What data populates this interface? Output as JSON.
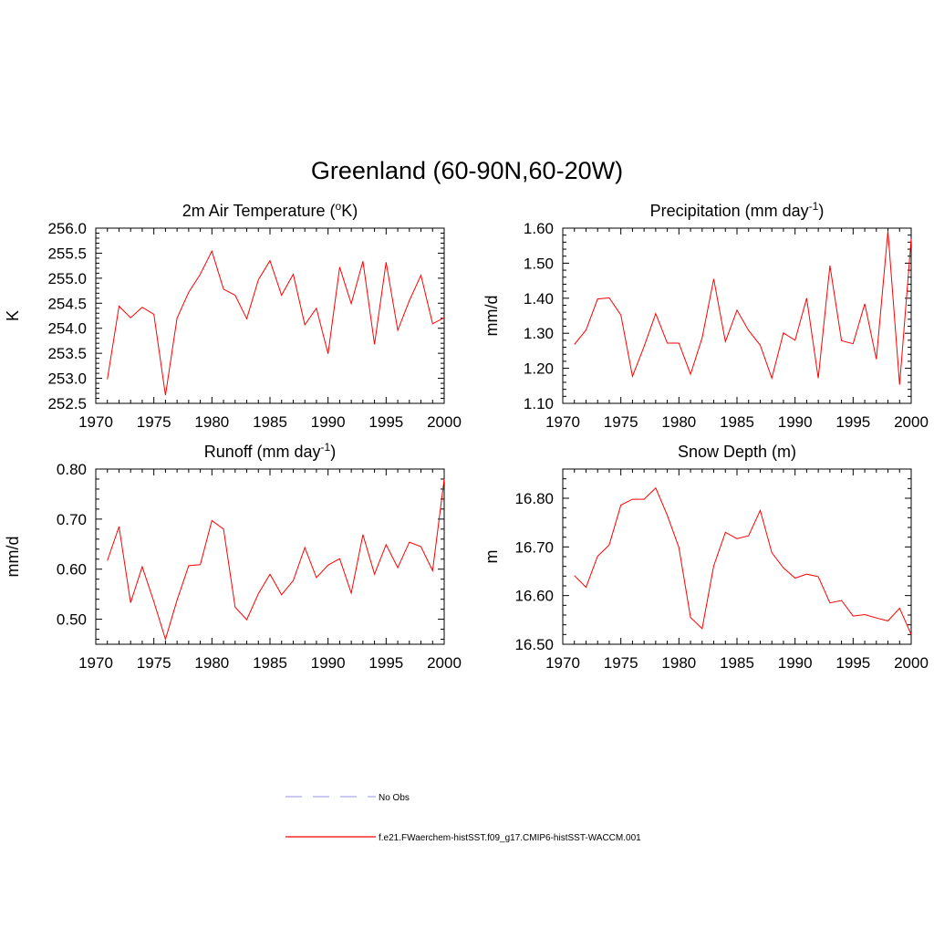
{
  "figure": {
    "title": "Greenland (60-90N,60-20W)"
  },
  "colors": {
    "model_line": "#ff0000",
    "obs_line": "#aaaaee",
    "axis": "#000000"
  },
  "legend": {
    "placement": "bottom-center",
    "entries": [
      {
        "label": "No Obs",
        "style": "dashed",
        "color": "#aaaaee"
      },
      {
        "label": "f.e21.FWaerchem-histSST.f09_g17.CMIP6-histSST-WACCM.001",
        "style": "solid",
        "color": "#ff0000"
      }
    ]
  },
  "chart_data": [
    {
      "type": "line",
      "title": "2m Air Temperature (",
      "title_sup": "o",
      "title_end": "K)",
      "ylabel": "K",
      "xlabel": "",
      "xlim": [
        1970,
        2000
      ],
      "ylim": [
        252.5,
        256.0
      ],
      "xticks": [
        1970,
        1975,
        1980,
        1985,
        1990,
        1995,
        2000
      ],
      "yticks": [
        252.5,
        253.0,
        253.5,
        254.0,
        254.5,
        255.0,
        255.5,
        256.0
      ],
      "ytick_decimals": 1,
      "x": [
        1971,
        1972,
        1973,
        1974,
        1975,
        1976,
        1977,
        1978,
        1979,
        1980,
        1981,
        1982,
        1983,
        1984,
        1985,
        1986,
        1987,
        1988,
        1989,
        1990,
        1991,
        1992,
        1993,
        1994,
        1995,
        1996,
        1997,
        1998,
        1999,
        2000
      ],
      "series": [
        {
          "name": "f.e21.FWaerchem-histSST.f09_g17.CMIP6-histSST-WACCM.001",
          "values": [
            252.98,
            254.44,
            254.21,
            254.42,
            254.28,
            252.66,
            254.2,
            254.72,
            255.08,
            255.54,
            254.78,
            254.66,
            254.19,
            254.97,
            255.35,
            254.66,
            255.08,
            254.07,
            254.4,
            253.49,
            255.22,
            254.49,
            255.34,
            253.68,
            255.32,
            253.96,
            254.55,
            255.06,
            254.09,
            254.21
          ]
        }
      ],
      "grid": false
    },
    {
      "type": "line",
      "title": "Precipitation (mm day",
      "title_sup": "-1",
      "title_end": ")",
      "ylabel": "mm/d",
      "xlabel": "",
      "xlim": [
        1970,
        2000
      ],
      "ylim": [
        1.1,
        1.6
      ],
      "xticks": [
        1970,
        1975,
        1980,
        1985,
        1990,
        1995,
        2000
      ],
      "yticks": [
        1.1,
        1.2,
        1.3,
        1.4,
        1.5,
        1.6
      ],
      "ytick_decimals": 2,
      "x": [
        1971,
        1972,
        1973,
        1974,
        1975,
        1976,
        1977,
        1978,
        1979,
        1980,
        1981,
        1982,
        1983,
        1984,
        1985,
        1986,
        1987,
        1988,
        1989,
        1990,
        1991,
        1992,
        1993,
        1994,
        1995,
        1996,
        1997,
        1998,
        1999,
        2000
      ],
      "series": [
        {
          "name": "f.e21.FWaerchem-histSST.f09_g17.CMIP6-histSST-WACCM.001",
          "values": [
            1.268,
            1.309,
            1.398,
            1.401,
            1.352,
            1.177,
            1.262,
            1.356,
            1.272,
            1.272,
            1.183,
            1.287,
            1.455,
            1.276,
            1.366,
            1.308,
            1.266,
            1.172,
            1.301,
            1.28,
            1.4,
            1.172,
            1.493,
            1.279,
            1.27,
            1.384,
            1.226,
            1.592,
            1.153,
            1.57
          ]
        }
      ],
      "grid": false
    },
    {
      "type": "line",
      "title": "Runoff (mm day",
      "title_sup": "-1",
      "title_end": ")",
      "ylabel": "mm/d",
      "xlabel": "",
      "xlim": [
        1970,
        2000
      ],
      "ylim": [
        0.45,
        0.8
      ],
      "xticks": [
        1970,
        1975,
        1980,
        1985,
        1990,
        1995,
        2000
      ],
      "yticks": [
        0.5,
        0.6,
        0.7,
        0.8
      ],
      "ytick_decimals": 2,
      "x": [
        1971,
        1972,
        1973,
        1974,
        1975,
        1976,
        1977,
        1978,
        1979,
        1980,
        1981,
        1982,
        1983,
        1984,
        1985,
        1986,
        1987,
        1988,
        1989,
        1990,
        1991,
        1992,
        1993,
        1994,
        1995,
        1996,
        1997,
        1998,
        1999,
        2000
      ],
      "series": [
        {
          "name": "f.e21.FWaerchem-histSST.f09_g17.CMIP6-histSST-WACCM.001",
          "values": [
            0.617,
            0.685,
            0.533,
            0.605,
            0.535,
            0.46,
            0.538,
            0.607,
            0.609,
            0.697,
            0.68,
            0.524,
            0.499,
            0.551,
            0.59,
            0.549,
            0.577,
            0.643,
            0.583,
            0.608,
            0.621,
            0.552,
            0.669,
            0.59,
            0.649,
            0.603,
            0.654,
            0.645,
            0.597,
            0.78
          ]
        }
      ],
      "grid": false
    },
    {
      "type": "line",
      "title": "Snow Depth (m)",
      "title_sup": "",
      "title_end": "",
      "ylabel": "m",
      "xlabel": "",
      "xlim": [
        1970,
        2000
      ],
      "ylim": [
        16.5,
        16.86
      ],
      "xticks": [
        1970,
        1975,
        1980,
        1985,
        1990,
        1995,
        2000
      ],
      "yticks": [
        16.5,
        16.6,
        16.7,
        16.8
      ],
      "ytick_decimals": 2,
      "x": [
        1971,
        1972,
        1973,
        1974,
        1975,
        1976,
        1977,
        1978,
        1979,
        1980,
        1981,
        1982,
        1983,
        1984,
        1985,
        1986,
        1987,
        1988,
        1989,
        1990,
        1991,
        1992,
        1993,
        1994,
        1995,
        1996,
        1997,
        1998,
        1999,
        2000
      ],
      "series": [
        {
          "name": "f.e21.FWaerchem-histSST.f09_g17.CMIP6-histSST-WACCM.001",
          "values": [
            16.641,
            16.617,
            16.681,
            16.704,
            16.786,
            16.798,
            16.798,
            16.821,
            16.765,
            16.699,
            16.555,
            16.532,
            16.661,
            16.73,
            16.717,
            16.723,
            16.775,
            16.688,
            16.657,
            16.636,
            16.644,
            16.639,
            16.585,
            16.59,
            16.558,
            16.561,
            16.554,
            16.548,
            16.574,
            16.52
          ]
        }
      ],
      "grid": false
    }
  ]
}
